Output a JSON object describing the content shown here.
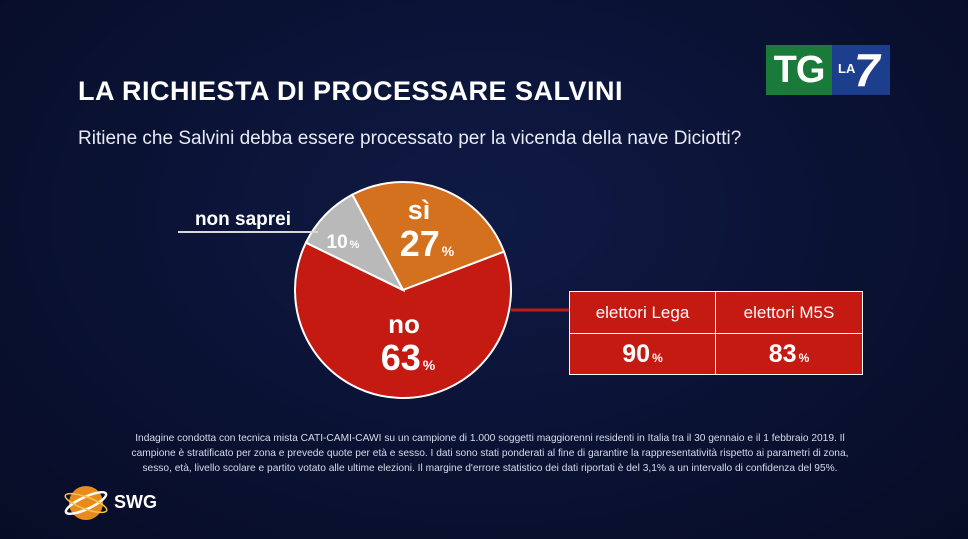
{
  "header": {
    "title": "LA RICHIESTA DI PROCESSARE SALVINI",
    "question": "Ritiene che Salvini debba essere processato per la vicenda della nave Diciotti?"
  },
  "broadcaster_logo": {
    "tg": "TG",
    "la": "LA",
    "seven": "7"
  },
  "chart_data": {
    "type": "pie",
    "slices": [
      {
        "label": "sì",
        "value": 27,
        "unit": "%",
        "color": "#d4711e"
      },
      {
        "label": "no",
        "value": 63,
        "unit": "%",
        "color": "#c41a12"
      },
      {
        "label": "non saprei",
        "value": 10,
        "unit": "%",
        "color": "#b9b9b9"
      }
    ]
  },
  "breakdown": {
    "headers": [
      "elettori Lega",
      "elettori M5S"
    ],
    "no_values": [
      {
        "value": "90",
        "unit": "%"
      },
      {
        "value": "83",
        "unit": "%"
      }
    ]
  },
  "footnote": {
    "line1": "Indagine condotta con tecnica mista CATI-CAMI-CAWI su un campione di 1.000 soggetti maggiorenni residenti in Italia tra il 30 gennaio e il 1 febbraio 2019. Il",
    "line2": "campione è stratificato per zona e prevede quote per età e sesso. I dati sono stati ponderati al fine di garantire la rappresentatività rispetto ai parametri di zona,",
    "line3": "sesso, età, livello scolare e partito votato alle ultime elezioni. Il margine d'errore statistico dei dati riportati è del 3,1% a un intervallo di confidenza del 95%."
  },
  "source": {
    "name": "SWG"
  }
}
